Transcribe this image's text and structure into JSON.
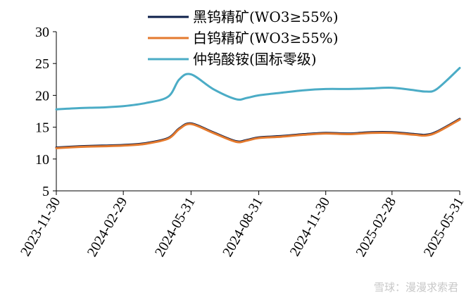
{
  "chart_data": {
    "type": "line",
    "xlabel": "",
    "ylabel": "",
    "ylim": [
      5,
      30
    ],
    "yticks": [
      5,
      10,
      15,
      20,
      25,
      30
    ],
    "xtick_labels": [
      "2023-11-30",
      "2024-02-29",
      "2024-05-31",
      "2024-08-31",
      "2024-11-30",
      "2025-02-28",
      "2025-05-31"
    ],
    "x": [
      "2023-11-30",
      "2023-12-31",
      "2024-01-31",
      "2024-02-29",
      "2024-03-31",
      "2024-04-30",
      "2024-05-15",
      "2024-05-31",
      "2024-06-30",
      "2024-07-31",
      "2024-08-15",
      "2024-08-31",
      "2024-09-30",
      "2024-10-31",
      "2024-11-30",
      "2024-12-31",
      "2025-01-31",
      "2025-02-28",
      "2025-03-31",
      "2025-04-15",
      "2025-04-30",
      "2025-05-31"
    ],
    "grid": false,
    "legend_position": "top",
    "series": [
      {
        "name": "黑钨精矿(WO3≥55%)",
        "color": "#0d1f4a",
        "values": [
          11.8,
          12.0,
          12.1,
          12.2,
          12.5,
          13.3,
          14.8,
          15.6,
          14.2,
          12.8,
          13.0,
          13.4,
          13.6,
          13.9,
          14.1,
          14.0,
          14.2,
          14.2,
          13.9,
          13.8,
          14.3,
          16.3
        ]
      },
      {
        "name": "白钨精矿(WO3≥55%)",
        "color": "#e47a2e",
        "values": [
          11.7,
          11.9,
          12.0,
          12.1,
          12.4,
          13.2,
          14.7,
          15.5,
          14.1,
          12.7,
          12.9,
          13.3,
          13.5,
          13.8,
          14.0,
          13.9,
          14.1,
          14.1,
          13.8,
          13.7,
          14.2,
          16.2
        ]
      },
      {
        "name": "仲钨酸铵(国标零级)",
        "color": "#4bacc6",
        "values": [
          17.8,
          18.0,
          18.1,
          18.3,
          18.8,
          19.8,
          22.5,
          23.3,
          21.0,
          19.4,
          19.6,
          20.0,
          20.4,
          20.8,
          21.0,
          21.0,
          21.1,
          21.2,
          20.8,
          20.6,
          21.0,
          24.3
        ]
      }
    ]
  },
  "watermark": "雪球：漫漫求索君"
}
